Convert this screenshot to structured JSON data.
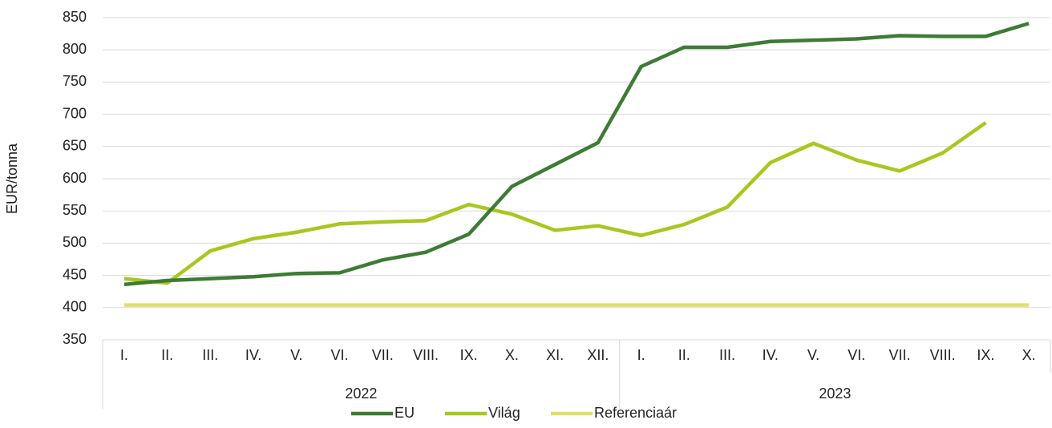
{
  "chart_data": {
    "type": "line",
    "ylabel": "EUR/tonna",
    "categories": [
      "I.",
      "II.",
      "III.",
      "IV.",
      "V.",
      "VI.",
      "VII.",
      "VIII.",
      "IX.",
      "X.",
      "XI.",
      "XII.",
      "I.",
      "II.",
      "III.",
      "IV.",
      "V.",
      "VI.",
      "VII.",
      "VIII.",
      "IX.",
      "X."
    ],
    "category_groups": [
      {
        "name": "2022",
        "count": 12
      },
      {
        "name": "2023",
        "count": 10
      }
    ],
    "series": [
      {
        "name": "EU",
        "color": "#3e7b35",
        "values": [
          436,
          442,
          445,
          448,
          453,
          454,
          474,
          486,
          514,
          588,
          622,
          656,
          774,
          804,
          804,
          813,
          815,
          817,
          822,
          821,
          821,
          841
        ]
      },
      {
        "name": "Világ",
        "color": "#a8c71f",
        "values": [
          445,
          438,
          488,
          507,
          517,
          530,
          533,
          535,
          560,
          545,
          520,
          527,
          512,
          529,
          556,
          625,
          655,
          629,
          612,
          640,
          687,
          null
        ]
      },
      {
        "name": "Referenciaár",
        "color": "#dfe068",
        "values": [
          404,
          404,
          404,
          404,
          404,
          404,
          404,
          404,
          404,
          404,
          404,
          404,
          404,
          404,
          404,
          404,
          404,
          404,
          404,
          404,
          404,
          404
        ]
      }
    ],
    "ylim": [
      350,
      850
    ],
    "yticks": [
      350,
      400,
      450,
      500,
      550,
      600,
      650,
      700,
      750,
      800,
      850
    ],
    "grid": true,
    "legend": "bottom"
  }
}
